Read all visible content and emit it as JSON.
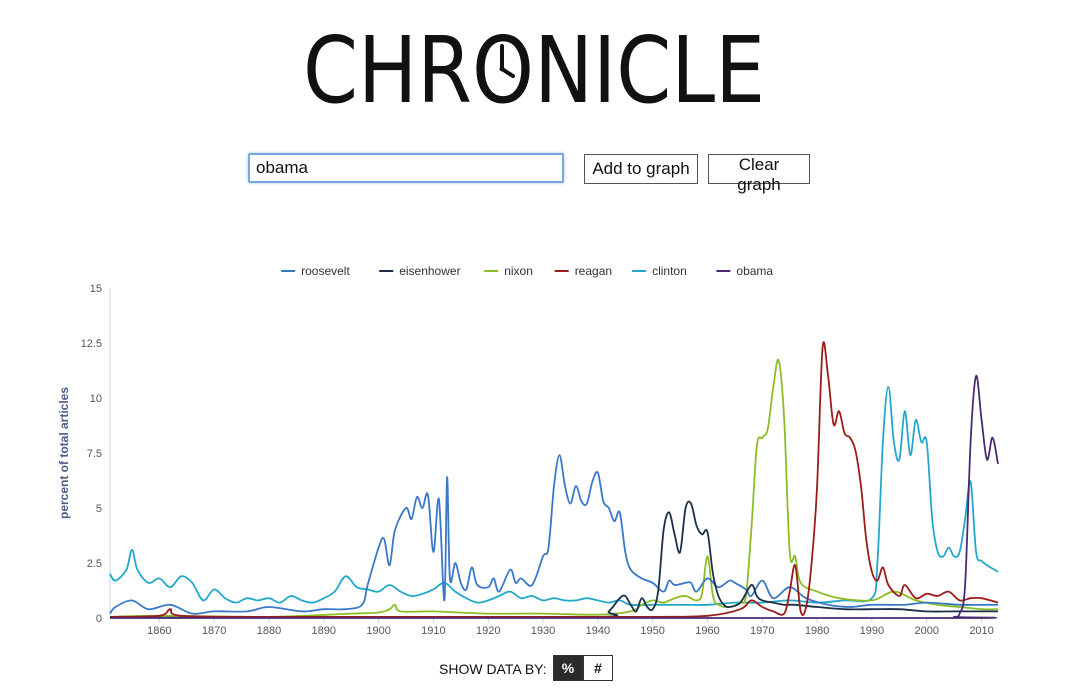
{
  "header": {
    "logo_text": "CHRONICLE"
  },
  "search": {
    "value": "obama",
    "add_label": "Add to graph",
    "clear_label": "Clear graph"
  },
  "controls": {
    "show_by_label": "SHOW DATA BY:",
    "percent_label": "%",
    "count_label": "#",
    "active": "percent"
  },
  "chart_data": {
    "type": "line",
    "title": "",
    "xlabel": "",
    "ylabel": "percent of total articles",
    "xlim": [
      1851,
      2013
    ],
    "ylim": [
      0,
      15
    ],
    "y_ticks": [
      0,
      2.5,
      5,
      7.5,
      10,
      12.5,
      15
    ],
    "y_tick_labels": [
      "0",
      "2.5",
      "5",
      "7.5",
      "10",
      "12.5",
      "15"
    ],
    "x_ticks": [
      1860,
      1870,
      1880,
      1890,
      1900,
      1910,
      1920,
      1930,
      1940,
      1950,
      1960,
      1970,
      1980,
      1990,
      2000,
      2010
    ],
    "legend_position": "top-center",
    "grid": false,
    "series": [
      {
        "name": "roosevelt",
        "color": "#3a78c9",
        "points": [
          [
            1851,
            0.2
          ],
          [
            1852,
            0.5
          ],
          [
            1855,
            0.8
          ],
          [
            1858,
            0.4
          ],
          [
            1862,
            0.6
          ],
          [
            1866,
            0.2
          ],
          [
            1870,
            0.3
          ],
          [
            1876,
            0.3
          ],
          [
            1880,
            0.5
          ],
          [
            1886,
            0.3
          ],
          [
            1890,
            0.4
          ],
          [
            1894,
            0.4
          ],
          [
            1897,
            0.6
          ],
          [
            1898,
            1.5
          ],
          [
            1900,
            3.2
          ],
          [
            1901,
            3.6
          ],
          [
            1902,
            2.4
          ],
          [
            1903,
            4.0
          ],
          [
            1905,
            5.0
          ],
          [
            1906,
            4.5
          ],
          [
            1907,
            5.5
          ],
          [
            1908,
            5.0
          ],
          [
            1909,
            5.6
          ],
          [
            1910,
            3.0
          ],
          [
            1911,
            5.4
          ],
          [
            1912,
            0.8
          ],
          [
            1912.5,
            6.4
          ],
          [
            1913,
            1.8
          ],
          [
            1914,
            2.5
          ],
          [
            1915,
            1.6
          ],
          [
            1916,
            1.3
          ],
          [
            1917,
            2.3
          ],
          [
            1918,
            1.5
          ],
          [
            1920,
            1.4
          ],
          [
            1921,
            1.8
          ],
          [
            1922,
            1.2
          ],
          [
            1924,
            2.2
          ],
          [
            1925,
            1.6
          ],
          [
            1926,
            1.8
          ],
          [
            1928,
            1.5
          ],
          [
            1930,
            2.8
          ],
          [
            1931,
            3.2
          ],
          [
            1932,
            6.0
          ],
          [
            1933,
            7.4
          ],
          [
            1934,
            6.0
          ],
          [
            1935,
            5.2
          ],
          [
            1936,
            6.0
          ],
          [
            1937,
            5.3
          ],
          [
            1938,
            5.2
          ],
          [
            1939,
            6.2
          ],
          [
            1940,
            6.6
          ],
          [
            1941,
            5.3
          ],
          [
            1942,
            5.0
          ],
          [
            1943,
            4.4
          ],
          [
            1944,
            4.8
          ],
          [
            1945,
            3.0
          ],
          [
            1946,
            2.2
          ],
          [
            1948,
            1.8
          ],
          [
            1950,
            1.6
          ],
          [
            1952,
            1.2
          ],
          [
            1953,
            1.7
          ],
          [
            1954,
            1.5
          ],
          [
            1956,
            1.6
          ],
          [
            1957,
            1.6
          ],
          [
            1958,
            1.2
          ],
          [
            1960,
            1.8
          ],
          [
            1962,
            1.4
          ],
          [
            1964,
            1.7
          ],
          [
            1965,
            1.6
          ],
          [
            1967,
            1.3
          ],
          [
            1968,
            1.0
          ],
          [
            1970,
            1.7
          ],
          [
            1972,
            0.9
          ],
          [
            1975,
            1.4
          ],
          [
            1978,
            0.9
          ],
          [
            1982,
            0.6
          ],
          [
            1986,
            0.5
          ],
          [
            1990,
            0.6
          ],
          [
            1996,
            0.6
          ],
          [
            2000,
            0.7
          ],
          [
            2006,
            0.6
          ],
          [
            2010,
            0.6
          ],
          [
            2013,
            0.6
          ]
        ]
      },
      {
        "name": "eisenhower",
        "color": "#1b2f4a",
        "points": [
          [
            1851,
            0.02
          ],
          [
            1900,
            0.02
          ],
          [
            1940,
            0.05
          ],
          [
            1942,
            0.3
          ],
          [
            1944,
            0.9
          ],
          [
            1945,
            1.0
          ],
          [
            1946,
            0.6
          ],
          [
            1947,
            0.3
          ],
          [
            1948,
            0.9
          ],
          [
            1949,
            0.5
          ],
          [
            1950,
            0.4
          ],
          [
            1951,
            1.2
          ],
          [
            1952,
            4.0
          ],
          [
            1953,
            4.8
          ],
          [
            1954,
            3.8
          ],
          [
            1955,
            3.0
          ],
          [
            1956,
            5.0
          ],
          [
            1957,
            5.2
          ],
          [
            1958,
            4.2
          ],
          [
            1959,
            3.8
          ],
          [
            1960,
            3.9
          ],
          [
            1961,
            2.0
          ],
          [
            1962,
            1.0
          ],
          [
            1963,
            0.6
          ],
          [
            1964,
            0.5
          ],
          [
            1966,
            0.7
          ],
          [
            1968,
            1.5
          ],
          [
            1969,
            1.0
          ],
          [
            1970,
            0.8
          ],
          [
            1972,
            0.7
          ],
          [
            1974,
            0.6
          ],
          [
            1976,
            0.6
          ],
          [
            1980,
            0.5
          ],
          [
            1985,
            0.4
          ],
          [
            1990,
            0.4
          ],
          [
            1995,
            0.4
          ],
          [
            2000,
            0.3
          ],
          [
            2005,
            0.3
          ],
          [
            2013,
            0.3
          ]
        ]
      },
      {
        "name": "nixon",
        "color": "#8cbd24",
        "points": [
          [
            1851,
            0.05
          ],
          [
            1860,
            0.1
          ],
          [
            1880,
            0.05
          ],
          [
            1895,
            0.2
          ],
          [
            1900,
            0.25
          ],
          [
            1902,
            0.4
          ],
          [
            1903,
            0.6
          ],
          [
            1904,
            0.3
          ],
          [
            1910,
            0.3
          ],
          [
            1920,
            0.2
          ],
          [
            1930,
            0.2
          ],
          [
            1940,
            0.15
          ],
          [
            1946,
            0.3
          ],
          [
            1948,
            0.6
          ],
          [
            1950,
            0.8
          ],
          [
            1952,
            0.7
          ],
          [
            1954,
            0.9
          ],
          [
            1956,
            1.0
          ],
          [
            1958,
            0.8
          ],
          [
            1959,
            1.1
          ],
          [
            1960,
            2.8
          ],
          [
            1961,
            1.0
          ],
          [
            1962,
            0.6
          ],
          [
            1964,
            0.5
          ],
          [
            1966,
            0.7
          ],
          [
            1967,
            1.0
          ],
          [
            1968,
            4.0
          ],
          [
            1969,
            7.8
          ],
          [
            1970,
            8.2
          ],
          [
            1971,
            8.6
          ],
          [
            1972,
            10.5
          ],
          [
            1973,
            11.7
          ],
          [
            1974,
            9.0
          ],
          [
            1975,
            3.0
          ],
          [
            1976,
            2.8
          ],
          [
            1977,
            1.6
          ],
          [
            1980,
            1.2
          ],
          [
            1984,
            0.9
          ],
          [
            1990,
            0.8
          ],
          [
            1994,
            1.2
          ],
          [
            1998,
            0.8
          ],
          [
            2002,
            0.6
          ],
          [
            2006,
            0.5
          ],
          [
            2010,
            0.4
          ],
          [
            2013,
            0.4
          ]
        ]
      },
      {
        "name": "reagan",
        "color": "#9c1b1b",
        "points": [
          [
            1851,
            0.05
          ],
          [
            1860,
            0.1
          ],
          [
            1862,
            0.4
          ],
          [
            1864,
            0.1
          ],
          [
            1880,
            0.05
          ],
          [
            1900,
            0.05
          ],
          [
            1930,
            0.05
          ],
          [
            1950,
            0.05
          ],
          [
            1960,
            0.1
          ],
          [
            1966,
            0.4
          ],
          [
            1968,
            0.8
          ],
          [
            1970,
            0.5
          ],
          [
            1972,
            0.3
          ],
          [
            1974,
            0.2
          ],
          [
            1975,
            1.2
          ],
          [
            1976,
            2.4
          ],
          [
            1977,
            0.3
          ],
          [
            1978,
            0.5
          ],
          [
            1979,
            2.5
          ],
          [
            1980,
            6.0
          ],
          [
            1981,
            12.3
          ],
          [
            1982,
            11.0
          ],
          [
            1983,
            8.8
          ],
          [
            1984,
            9.4
          ],
          [
            1985,
            8.4
          ],
          [
            1986,
            8.2
          ],
          [
            1987,
            7.6
          ],
          [
            1988,
            6.0
          ],
          [
            1989,
            3.5
          ],
          [
            1990,
            2.1
          ],
          [
            1991,
            1.7
          ],
          [
            1992,
            2.3
          ],
          [
            1993,
            1.5
          ],
          [
            1995,
            1.0
          ],
          [
            1996,
            1.5
          ],
          [
            1998,
            0.9
          ],
          [
            2000,
            1.1
          ],
          [
            2002,
            1.0
          ],
          [
            2004,
            1.2
          ],
          [
            2006,
            0.8
          ],
          [
            2008,
            0.9
          ],
          [
            2010,
            0.9
          ],
          [
            2013,
            0.7
          ]
        ]
      },
      {
        "name": "clinton",
        "color": "#23a8cc",
        "points": [
          [
            1851,
            2.0
          ],
          [
            1852,
            1.7
          ],
          [
            1854,
            2.2
          ],
          [
            1855,
            3.1
          ],
          [
            1856,
            2.2
          ],
          [
            1858,
            1.6
          ],
          [
            1860,
            1.8
          ],
          [
            1862,
            1.4
          ],
          [
            1864,
            1.9
          ],
          [
            1866,
            1.6
          ],
          [
            1868,
            0.8
          ],
          [
            1870,
            1.3
          ],
          [
            1872,
            0.9
          ],
          [
            1874,
            0.7
          ],
          [
            1876,
            0.9
          ],
          [
            1878,
            0.8
          ],
          [
            1880,
            0.9
          ],
          [
            1882,
            0.7
          ],
          [
            1884,
            1.0
          ],
          [
            1886,
            0.8
          ],
          [
            1888,
            0.7
          ],
          [
            1890,
            0.9
          ],
          [
            1892,
            1.2
          ],
          [
            1894,
            1.9
          ],
          [
            1896,
            1.4
          ],
          [
            1898,
            1.3
          ],
          [
            1900,
            1.2
          ],
          [
            1902,
            1.5
          ],
          [
            1904,
            1.2
          ],
          [
            1906,
            1.0
          ],
          [
            1908,
            1.1
          ],
          [
            1910,
            1.3
          ],
          [
            1912,
            1.6
          ],
          [
            1914,
            1.2
          ],
          [
            1916,
            0.9
          ],
          [
            1918,
            0.7
          ],
          [
            1920,
            0.8
          ],
          [
            1922,
            1.0
          ],
          [
            1924,
            1.2
          ],
          [
            1926,
            0.9
          ],
          [
            1928,
            1.0
          ],
          [
            1930,
            0.8
          ],
          [
            1932,
            0.9
          ],
          [
            1934,
            0.8
          ],
          [
            1936,
            0.8
          ],
          [
            1938,
            0.9
          ],
          [
            1940,
            0.8
          ],
          [
            1942,
            0.7
          ],
          [
            1944,
            0.8
          ],
          [
            1946,
            0.6
          ],
          [
            1950,
            0.6
          ],
          [
            1955,
            0.6
          ],
          [
            1960,
            0.6
          ],
          [
            1965,
            0.7
          ],
          [
            1970,
            0.7
          ],
          [
            1975,
            0.8
          ],
          [
            1980,
            0.7
          ],
          [
            1985,
            0.8
          ],
          [
            1990,
            0.9
          ],
          [
            1991,
            2.5
          ],
          [
            1992,
            8.0
          ],
          [
            1993,
            10.5
          ],
          [
            1994,
            8.0
          ],
          [
            1995,
            7.2
          ],
          [
            1996,
            9.4
          ],
          [
            1997,
            7.4
          ],
          [
            1998,
            9.0
          ],
          [
            1999,
            8.0
          ],
          [
            2000,
            8.0
          ],
          [
            2001,
            4.5
          ],
          [
            2002,
            3.0
          ],
          [
            2003,
            2.8
          ],
          [
            2004,
            3.2
          ],
          [
            2005,
            2.8
          ],
          [
            2006,
            3.0
          ],
          [
            2007,
            4.5
          ],
          [
            2008,
            6.2
          ],
          [
            2009,
            3.0
          ],
          [
            2010,
            2.6
          ],
          [
            2011,
            2.4
          ],
          [
            2013,
            2.1
          ]
        ]
      },
      {
        "name": "obama",
        "color": "#4b2a73",
        "points": [
          [
            1851,
            0.0
          ],
          [
            2000,
            0.0
          ],
          [
            2005,
            0.05
          ],
          [
            2006,
            0.2
          ],
          [
            2007,
            1.5
          ],
          [
            2008,
            8.0
          ],
          [
            2009,
            11.0
          ],
          [
            2010,
            9.0
          ],
          [
            2011,
            7.2
          ],
          [
            2012,
            8.2
          ],
          [
            2013,
            7.0
          ]
        ]
      }
    ]
  }
}
